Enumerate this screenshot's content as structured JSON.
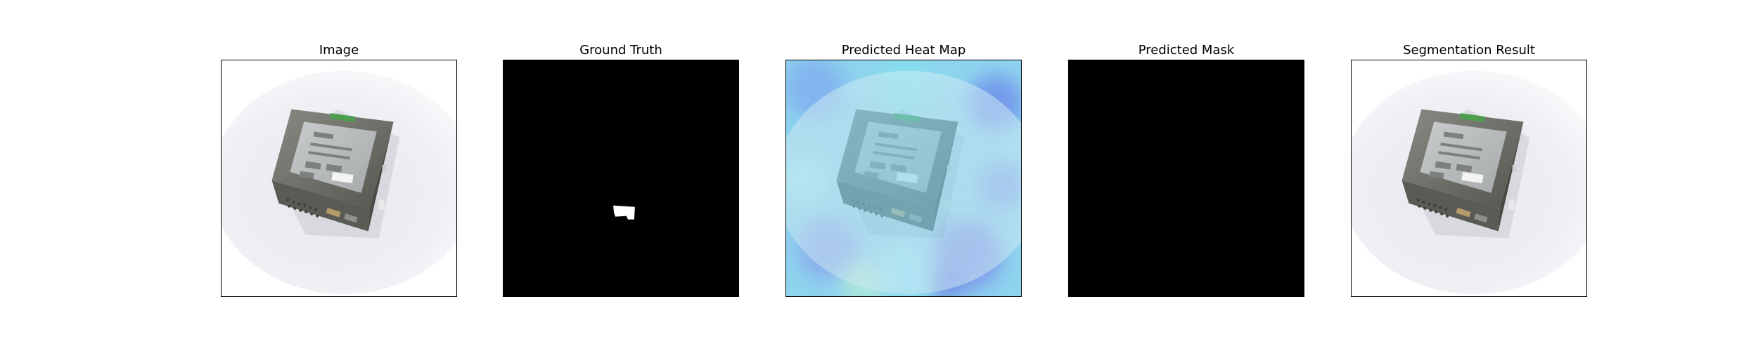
{
  "panels": [
    {
      "title": "Image",
      "content": "device-photo"
    },
    {
      "title": "Ground Truth",
      "content": "binary-mask-with-small-defect"
    },
    {
      "title": "Predicted Heat Map",
      "content": "heatmap-overlay-on-photo"
    },
    {
      "title": "Predicted Mask",
      "content": "empty-black-mask"
    },
    {
      "title": "Segmentation Result",
      "content": "device-photo"
    }
  ],
  "colors": {
    "frame": "#000000",
    "mask_background": "#000000",
    "mask_foreground": "#ffffff",
    "heatmap_cyan": "#7fe0ee",
    "heatmap_blue": "#8e8ef0"
  }
}
